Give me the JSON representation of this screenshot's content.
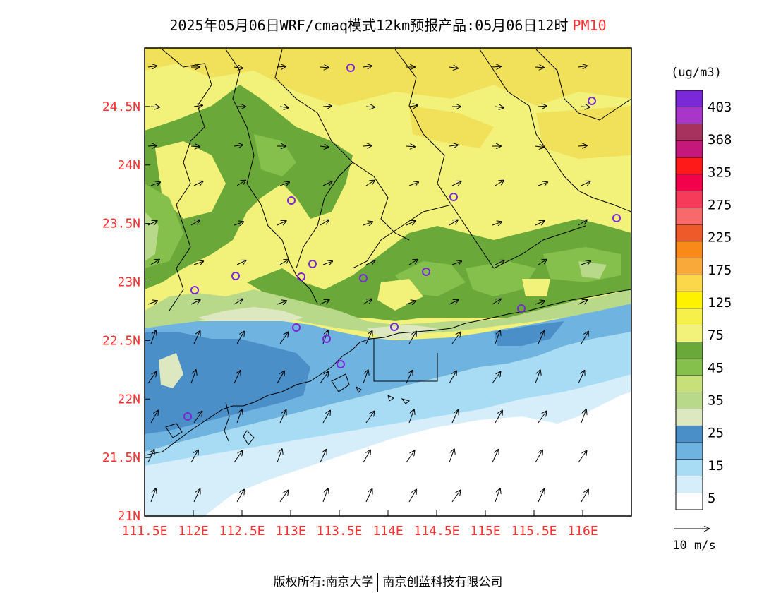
{
  "title": {
    "main": "2025年05月06日WRF/cmaq模式12km预报产品:05月06日12时",
    "pollutant": "PM10"
  },
  "map": {
    "lat_labels": [
      "24.5N",
      "24N",
      "23.5N",
      "23N",
      "22.5N",
      "22N",
      "21.5N",
      "21N"
    ],
    "lon_labels": [
      "111.5E",
      "112E",
      "112.5E",
      "113E",
      "113.5E",
      "114E",
      "114.5E",
      "115E",
      "115.5E",
      "116E"
    ],
    "lon_range": [
      111.5,
      116.5
    ],
    "lat_range": [
      21.0,
      25.0
    ],
    "label_color": "#ff3030"
  },
  "colorbar": {
    "unit": "(ug/m3)",
    "labels": [
      "403",
      "368",
      "325",
      "275",
      "225",
      "175",
      "125",
      "75",
      "45",
      "35",
      "25",
      "15",
      "5"
    ],
    "colors": [
      "#ffffff",
      "#d6eef9",
      "#a8dcf5",
      "#6fb3e0",
      "#4a8fc8",
      "#dde8c0",
      "#b8d88a",
      "#c7e07a",
      "#86c04c",
      "#6aa83a",
      "#f2f27a",
      "#f6f04a",
      "#fff200",
      "#fbd84a",
      "#f9a93a",
      "#f98a1a",
      "#ef5a2a",
      "#f7696a",
      "#f53a5a",
      "#f2024a",
      "#ff1a1a",
      "#c4197a",
      "#a8325e",
      "#a836c8",
      "#7a28d8"
    ]
  },
  "wind_legend": {
    "label": "10 m/s"
  },
  "copyright": {
    "part1": "版权所有:南京大学",
    "part2": "南京创蓝科技有限公司"
  }
}
